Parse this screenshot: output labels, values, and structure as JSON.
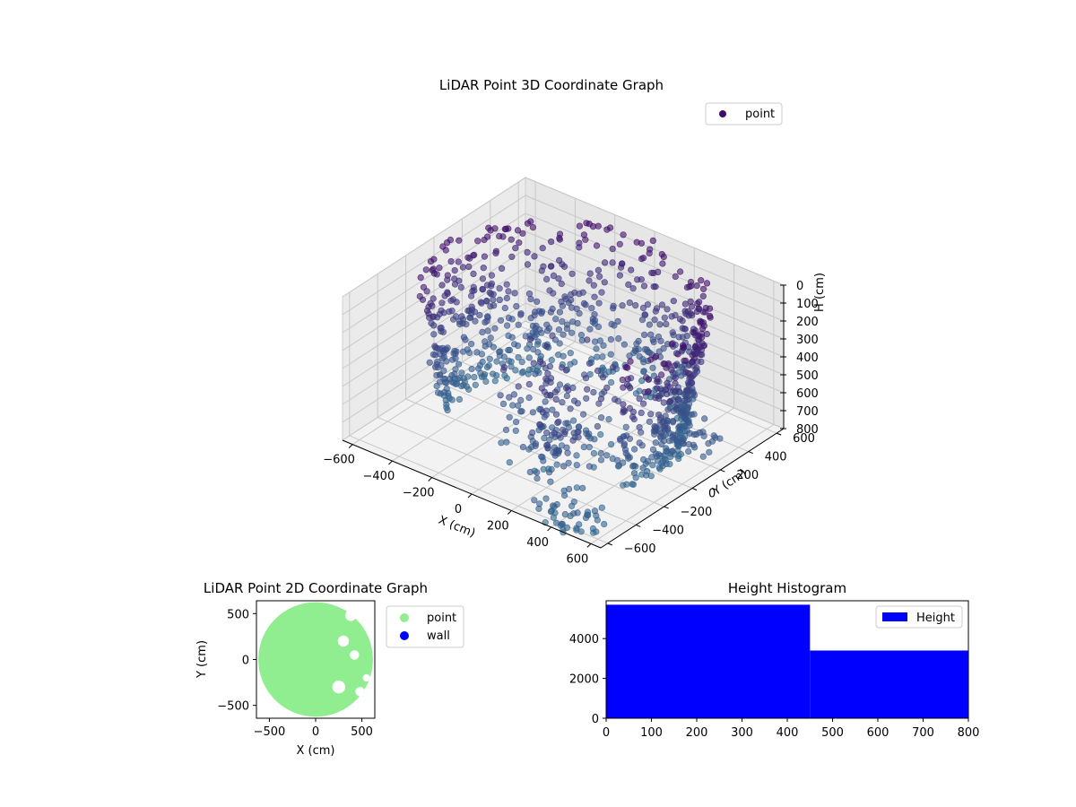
{
  "chart_data": [
    {
      "type": "scatter",
      "projection": "3d",
      "title": "LiDAR Point 3D Coordinate Graph",
      "xlabel": "X (cm)",
      "ylabel": "Y (cm)",
      "zlabel": "H (cm)",
      "xlim": [
        -650,
        650
      ],
      "ylim": [
        -650,
        650
      ],
      "zlim": [
        800,
        0
      ],
      "x_ticks": [
        "−600",
        "−400",
        "−200",
        "0",
        "200",
        "400",
        "600"
      ],
      "y_ticks": [
        "−600",
        "−400",
        "−200",
        "0",
        "200",
        "400",
        "600"
      ],
      "z_ticks": [
        "0",
        "100",
        "200",
        "300",
        "400",
        "500",
        "600",
        "700",
        "800"
      ],
      "grid": true,
      "legend": {
        "placement": "upper-right",
        "entries": [
          {
            "label": "point",
            "color": "#440a68"
          }
        ]
      },
      "colormap": "viridis",
      "series": [
        {
          "name": "point",
          "structure": "cylindrical wall sweep",
          "radius_range_cm": [
            430,
            620
          ],
          "theta_coverage_deg": [
            -30,
            210
          ],
          "height_range_cm": [
            0,
            800
          ],
          "approx_height_cm_per_rev": 800,
          "outlier_clusters": [
            {
              "center_x": 300,
              "center_y": -450,
              "h_range": [
                350,
                650
              ]
            },
            {
              "center_x": 550,
              "center_y": 100,
              "h_range": [
                500,
                650
              ]
            },
            {
              "center_x": 450,
              "center_y": -600,
              "h_range": [
                650,
                800
              ]
            }
          ]
        }
      ]
    },
    {
      "type": "scatter",
      "title": "LiDAR Point 2D Coordinate Graph",
      "xlabel": "X (cm)",
      "ylabel": "Y (cm)",
      "xlim": [
        -640,
        640
      ],
      "ylim": [
        -640,
        640
      ],
      "x_ticks": [
        "−500",
        "0",
        "500"
      ],
      "y_ticks": [
        "−500",
        "0",
        "500"
      ],
      "legend": {
        "placement": "outside-right",
        "entries": [
          {
            "label": "point",
            "color": "#90ee90"
          },
          {
            "label": "wall",
            "color": "#0000ff"
          }
        ]
      },
      "series": [
        {
          "name": "point",
          "color": "#90ee90",
          "region": "filled disc",
          "center": [
            0,
            0
          ],
          "radius": 620,
          "missing_spots": [
            [
              300,
              200,
              60
            ],
            [
              420,
              50,
              50
            ],
            [
              250,
              -300,
              70
            ],
            [
              480,
              -350,
              50
            ],
            [
              380,
              480,
              60
            ],
            [
              550,
              -200,
              40
            ]
          ]
        },
        {
          "name": "wall",
          "color": "#0000ff",
          "points": []
        }
      ]
    },
    {
      "type": "bar",
      "subtype": "histogram",
      "title": "Height Histogram",
      "xlabel": "",
      "ylabel": "",
      "xlim": [
        0,
        800
      ],
      "ylim": [
        0,
        5900
      ],
      "x_ticks": [
        "0",
        "100",
        "200",
        "300",
        "400",
        "500",
        "600",
        "700",
        "800"
      ],
      "y_ticks": [
        "0",
        "2000",
        "4000"
      ],
      "legend": {
        "placement": "upper-right",
        "entries": [
          {
            "label": "Height",
            "color": "#0000ff"
          }
        ]
      },
      "series": [
        {
          "name": "Height",
          "color": "#0000ff",
          "bins": [
            {
              "x0": 0,
              "x1": 450,
              "count": 5700
            },
            {
              "x0": 450,
              "x1": 800,
              "count": 3400
            }
          ]
        }
      ]
    }
  ]
}
